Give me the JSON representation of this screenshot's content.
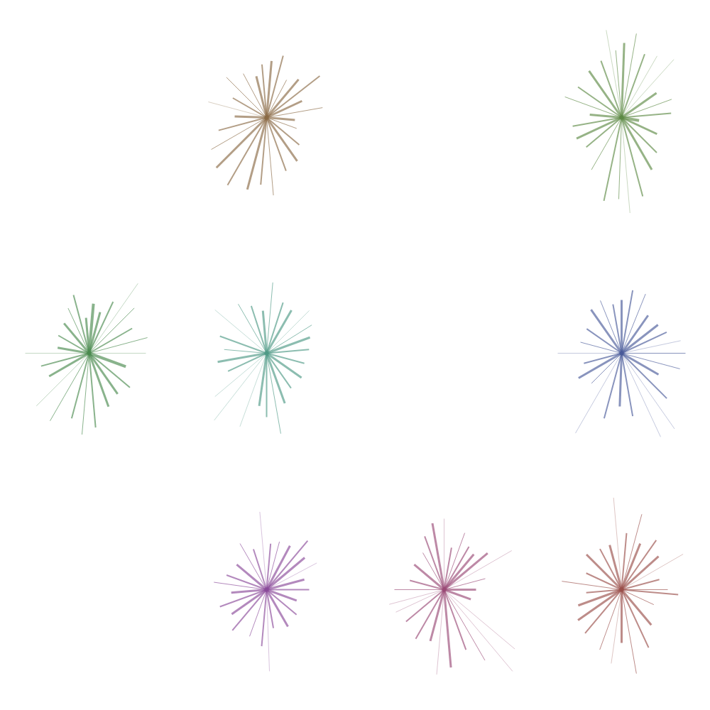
{
  "chart_data": {
    "type": "starburst",
    "xlim": [
      0,
      1000
    ],
    "ylim": [
      0,
      1000
    ],
    "tick_labels": false,
    "glyphs": [
      {
        "x": 375,
        "y": 835,
        "color": "#8b6a45",
        "angles": [
          10,
          25,
          38,
          50,
          62,
          75,
          85,
          95,
          104,
          118,
          135,
          150,
          165,
          178,
          195,
          210,
          225,
          240,
          255,
          265,
          275,
          290,
          305,
          320,
          340,
          355
        ],
        "lengths": [
          80,
          55,
          95,
          70,
          60,
          90,
          80,
          75,
          60,
          70,
          80,
          55,
          85,
          45,
          70,
          90,
          100,
          110,
          105,
          95,
          110,
          80,
          75,
          60,
          45,
          40
        ],
        "weights": [
          1,
          3,
          2,
          3,
          1,
          2,
          3,
          2,
          3,
          1,
          1,
          2,
          0.5,
          3,
          2,
          1,
          3,
          2,
          3,
          2,
          1,
          2,
          3,
          2,
          1,
          3
        ]
      },
      {
        "x": 875,
        "y": 835,
        "color": "#5d8a45",
        "angles": [
          5,
          20,
          35,
          48,
          60,
          70,
          80,
          88,
          95,
          100,
          110,
          125,
          145,
          160,
          175,
          190,
          205,
          220,
          240,
          258,
          268,
          275,
          285,
          300,
          315,
          335,
          350
        ],
        "lengths": [
          70,
          75,
          60,
          110,
          100,
          95,
          120,
          105,
          95,
          125,
          85,
          80,
          75,
          85,
          45,
          70,
          70,
          65,
          85,
          120,
          115,
          135,
          115,
          85,
          70,
          55,
          25
        ],
        "weights": [
          2,
          1,
          3,
          0.5,
          0.5,
          2,
          1,
          3,
          1,
          0.5,
          2,
          3,
          2,
          1,
          3,
          2,
          3,
          2,
          1,
          2,
          1,
          0.5,
          2,
          3,
          2,
          3,
          4
        ]
      },
      {
        "x": 125,
        "y": 503,
        "color": "#4a8a4e",
        "angles": [
          0,
          15,
          30,
          45,
          55,
          65,
          75,
          85,
          95,
          105,
          115,
          130,
          150,
          170,
          180,
          195,
          210,
          225,
          240,
          255,
          265,
          275,
          290,
          305,
          320,
          340
        ],
        "lengths": [
          80,
          85,
          70,
          90,
          120,
          80,
          60,
          70,
          50,
          85,
          70,
          55,
          50,
          45,
          90,
          70,
          65,
          105,
          110,
          95,
          115,
          105,
          80,
          70,
          75,
          55
        ],
        "weights": [
          0.5,
          1,
          2,
          1,
          0.5,
          2,
          3,
          4,
          3,
          2,
          1,
          3,
          2,
          3,
          0.5,
          2,
          3,
          0.5,
          1,
          2,
          1,
          2,
          3,
          3,
          2,
          4
        ]
      },
      {
        "x": 375,
        "y": 503,
        "color": "#4f9a86",
        "angles": [
          5,
          20,
          32,
          45,
          60,
          72,
          85,
          95,
          108,
          120,
          140,
          160,
          175,
          190,
          205,
          220,
          232,
          250,
          262,
          270,
          280,
          290,
          305,
          325,
          345
        ],
        "lengths": [
          60,
          65,
          75,
          85,
          70,
          75,
          100,
          60,
          70,
          80,
          95,
          70,
          60,
          70,
          60,
          95,
          120,
          110,
          75,
          90,
          115,
          75,
          60,
          60,
          55
        ],
        "weights": [
          2,
          3,
          1,
          0.5,
          3,
          2,
          1,
          3,
          2,
          1,
          0.5,
          2,
          1,
          3,
          2,
          0.5,
          0.5,
          0.5,
          3,
          2,
          1,
          3,
          2,
          3,
          2
        ]
      },
      {
        "x": 875,
        "y": 503,
        "color": "#4a5a9a",
        "angles": [
          0,
          12,
          25,
          38,
          55,
          68,
          80,
          90,
          100,
          112,
          125,
          145,
          165,
          180,
          195,
          210,
          225,
          240,
          255,
          268,
          280,
          295,
          305,
          315,
          330,
          345
        ],
        "lengths": [
          90,
          85,
          70,
          65,
          65,
          90,
          90,
          75,
          70,
          80,
          75,
          60,
          60,
          90,
          55,
          70,
          60,
          130,
          95,
          75,
          90,
          130,
          130,
          90,
          60,
          85
        ],
        "weights": [
          1,
          0.5,
          2,
          3,
          3,
          1,
          2,
          3,
          2,
          1,
          3,
          2,
          1,
          0.5,
          2,
          3,
          1,
          0.5,
          2,
          3,
          2,
          0.5,
          0.5,
          2,
          3,
          1
        ]
      },
      {
        "x": 375,
        "y": 170,
        "color": "#8a4a9a",
        "angles": [
          0,
          15,
          28,
          40,
          50,
          62,
          75,
          85,
          95,
          108,
          120,
          140,
          160,
          172,
          185,
          200,
          215,
          230,
          250,
          265,
          272,
          280,
          300,
          320,
          340
        ],
        "lengths": [
          60,
          55,
          80,
          70,
          90,
          70,
          70,
          65,
          110,
          60,
          75,
          55,
          60,
          75,
          50,
          70,
          60,
          75,
          70,
          80,
          115,
          55,
          60,
          55,
          45
        ],
        "weights": [
          2,
          3,
          0.5,
          3,
          2,
          3,
          1,
          2,
          0.5,
          2,
          1,
          3,
          2,
          1,
          3,
          2,
          3,
          2,
          1,
          2,
          0.5,
          2,
          3,
          2,
          3
        ]
      },
      {
        "x": 625,
        "y": 170,
        "color": "#9a4a76",
        "angles": [
          0,
          15,
          30,
          40,
          50,
          60,
          70,
          80,
          90,
          100,
          110,
          120,
          140,
          165,
          180,
          195,
          205,
          220,
          240,
          255,
          265,
          275,
          290,
          300,
          310,
          320,
          340
        ],
        "lengths": [
          45,
          60,
          110,
          80,
          65,
          70,
          85,
          60,
          100,
          95,
          80,
          60,
          55,
          50,
          70,
          80,
          75,
          70,
          80,
          75,
          120,
          110,
          90,
          115,
          150,
          130,
          40
        ],
        "weights": [
          3,
          1,
          0.5,
          3,
          3,
          2,
          1,
          2,
          0.5,
          3,
          2,
          1,
          3,
          2,
          1,
          0.5,
          0.5,
          2,
          2,
          3,
          0.5,
          3,
          2,
          1,
          0.5,
          0.5,
          3
        ]
      },
      {
        "x": 875,
        "y": 170,
        "color": "#9a4f4a",
        "angles": [
          0,
          15,
          30,
          42,
          55,
          68,
          75,
          85,
          95,
          105,
          118,
          135,
          155,
          172,
          185,
          200,
          215,
          230,
          250,
          262,
          270,
          280,
          295,
          310,
          335,
          355
        ],
        "lengths": [
          65,
          55,
          100,
          70,
          85,
          70,
          110,
          80,
          130,
          65,
          65,
          70,
          55,
          85,
          50,
          65,
          75,
          80,
          90,
          105,
          75,
          120,
          90,
          65,
          50,
          80
        ],
        "weights": [
          1,
          2,
          0.5,
          3,
          2,
          3,
          1,
          2,
          0.5,
          3,
          2,
          3,
          2,
          1,
          2,
          3,
          3,
          2,
          1,
          0.5,
          3,
          1,
          2,
          3,
          1,
          2
        ]
      }
    ]
  }
}
